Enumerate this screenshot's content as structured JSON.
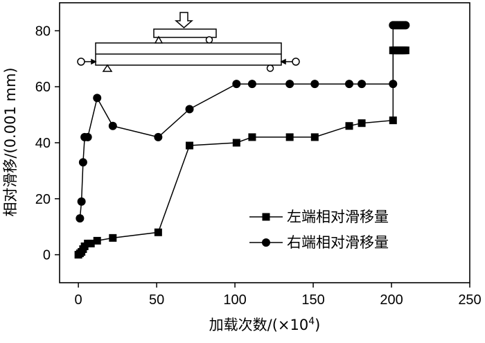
{
  "chart_data": {
    "type": "line",
    "xlabel": "加载次数/(×10",
    "xlabel_sup": "4",
    "xlabel_close": ")",
    "ylabel": "相对滑移/(0.001 mm)",
    "xlim": [
      -12,
      250
    ],
    "ylim": [
      -10,
      90
    ],
    "xticks": [
      0,
      50,
      100,
      150,
      200,
      250
    ],
    "yticks": [
      0,
      20,
      40,
      60,
      80
    ],
    "grid": false,
    "legend_position": "lower-right",
    "series": [
      {
        "name": "左端相对滑移量",
        "marker": "square",
        "x": [
          0,
          1,
          2,
          3,
          4,
          6,
          8,
          12,
          22,
          51,
          71,
          101,
          111,
          135,
          151,
          173,
          181,
          201,
          201,
          202,
          203,
          204,
          205,
          206,
          207,
          208,
          209
        ],
        "y": [
          0,
          0.5,
          1,
          2,
          3,
          4,
          4,
          5,
          6,
          8,
          39,
          40,
          42,
          42,
          42,
          46,
          47,
          48,
          73,
          73,
          73,
          73,
          73,
          73,
          73,
          73,
          73
        ]
      },
      {
        "name": "右端相对滑移量",
        "marker": "circle",
        "x": [
          1,
          2,
          3,
          4,
          6,
          12,
          22,
          51,
          71,
          101,
          111,
          135,
          151,
          173,
          181,
          201,
          201,
          202,
          203,
          204,
          205,
          206,
          207,
          208,
          209
        ],
        "y": [
          13,
          19,
          33,
          42,
          42,
          56,
          46,
          42,
          52,
          61,
          61,
          61,
          61,
          61,
          61,
          61,
          82,
          82,
          82,
          82,
          82,
          82,
          82,
          82,
          82
        ]
      }
    ]
  }
}
